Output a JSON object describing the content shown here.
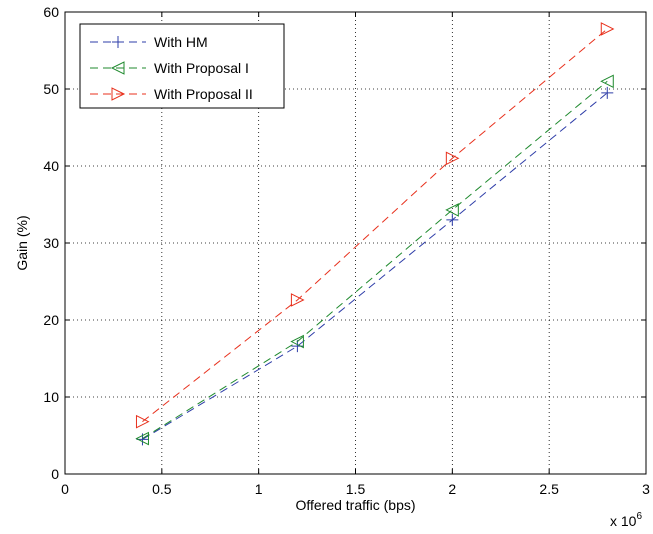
{
  "chart_data": {
    "type": "line",
    "title": "",
    "xlabel": "Offered traffic (bps)",
    "ylabel": "Gain (%)",
    "x_multiplier_label": "x 10",
    "x_multiplier_exponent": "6",
    "xlim": [
      0,
      3
    ],
    "ylim": [
      0,
      60
    ],
    "xticks": [
      0,
      0.5,
      1,
      1.5,
      2,
      2.5,
      3
    ],
    "xtick_labels": [
      "0",
      "0.5",
      "1",
      "1.5",
      "2",
      "2.5",
      "3"
    ],
    "yticks": [
      0,
      10,
      20,
      30,
      40,
      50,
      60
    ],
    "ytick_labels": [
      "0",
      "10",
      "20",
      "30",
      "40",
      "50",
      "60"
    ],
    "grid": true,
    "legend_position": "top-left",
    "series": [
      {
        "name": "With HM",
        "color": "#2e3da8",
        "marker": "plus",
        "x": [
          0.4,
          1.2,
          2.0,
          2.8
        ],
        "values": [
          4.5,
          16.6,
          33.0,
          49.5
        ]
      },
      {
        "name": "With Proposal I",
        "color": "#1f8a2e",
        "marker": "triangle-left",
        "x": [
          0.4,
          1.2,
          2.0,
          2.8
        ],
        "values": [
          4.6,
          17.2,
          34.3,
          51.0
        ]
      },
      {
        "name": "With Proposal II",
        "color": "#e8301c",
        "marker": "triangle-right",
        "x": [
          0.4,
          1.2,
          2.0,
          2.8
        ],
        "values": [
          6.8,
          22.6,
          41.0,
          57.8
        ]
      }
    ]
  }
}
